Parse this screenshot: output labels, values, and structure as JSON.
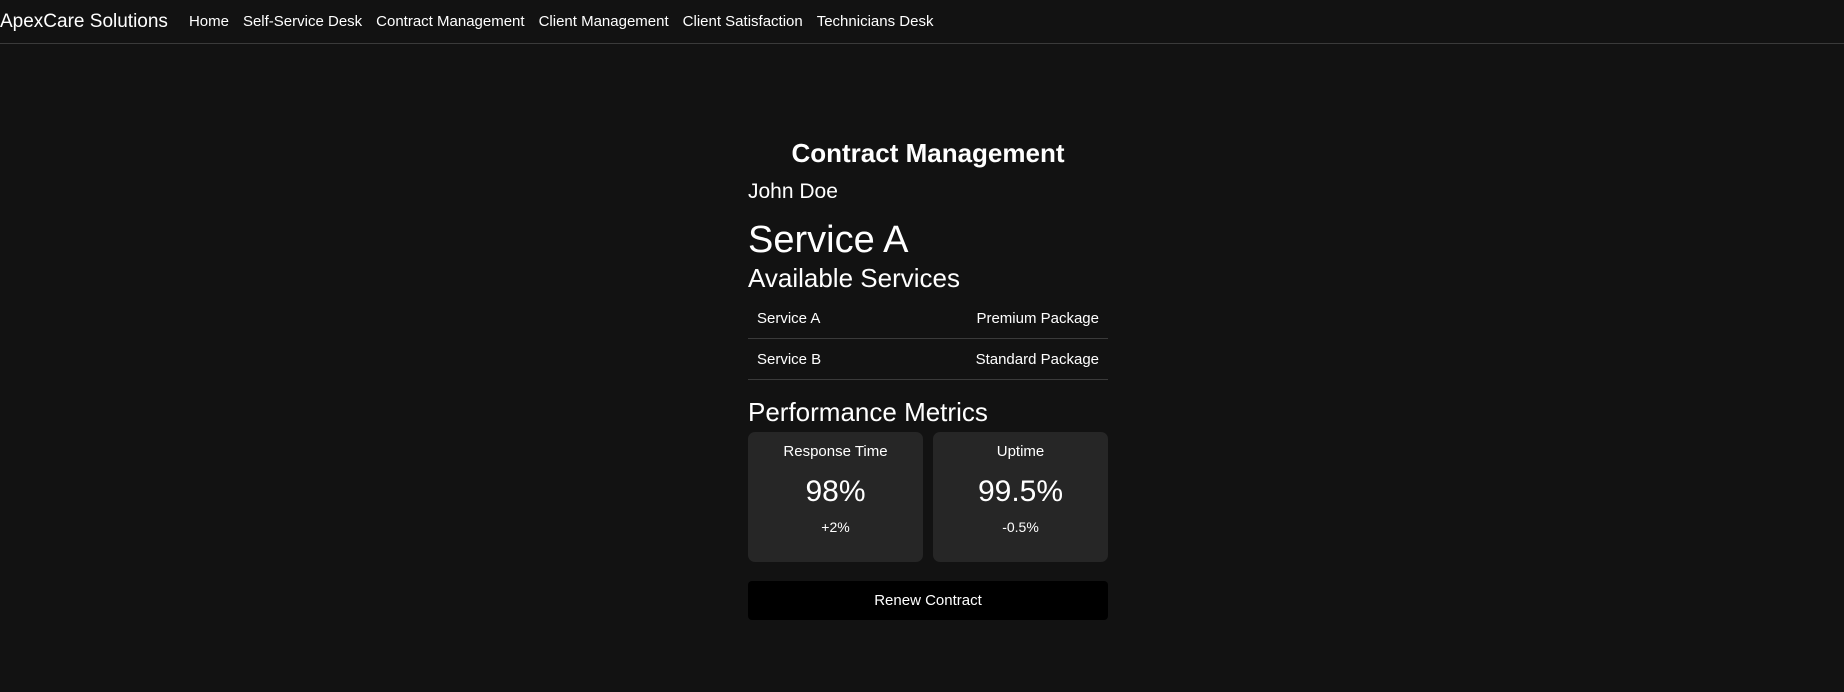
{
  "header": {
    "brand": "ApexCare Solutions",
    "nav": [
      "Home",
      "Self-Service Desk",
      "Contract Management",
      "Client Management",
      "Client Satisfaction",
      "Technicians Desk"
    ]
  },
  "page": {
    "title": "Contract Management",
    "client": "John Doe",
    "current_service": "Service A",
    "services_heading": "Available Services",
    "services": [
      [
        "Service A",
        "Premium Package"
      ],
      [
        "Service B",
        "Standard Package"
      ]
    ],
    "metrics_heading": "Performance Metrics",
    "metrics": [
      {
        "label": "Response Time",
        "value": "98%",
        "change": "+2%"
      },
      {
        "label": "Uptime",
        "value": "99.5%",
        "change": "-0.5%"
      }
    ],
    "button": "Renew Contract"
  }
}
